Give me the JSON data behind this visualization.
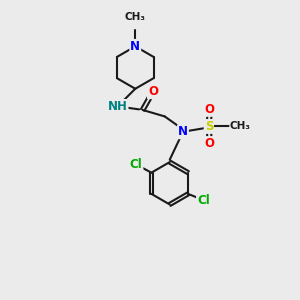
{
  "bg_color": "#ebebeb",
  "bond_color": "#1a1a1a",
  "atom_colors": {
    "N": "#0000ff",
    "NH": "#008080",
    "O": "#ff0000",
    "S": "#cccc00",
    "Cl": "#00aa00",
    "C": "#1a1a1a"
  },
  "lw": 1.5,
  "fs": 8.5,
  "fs_small": 7.5
}
